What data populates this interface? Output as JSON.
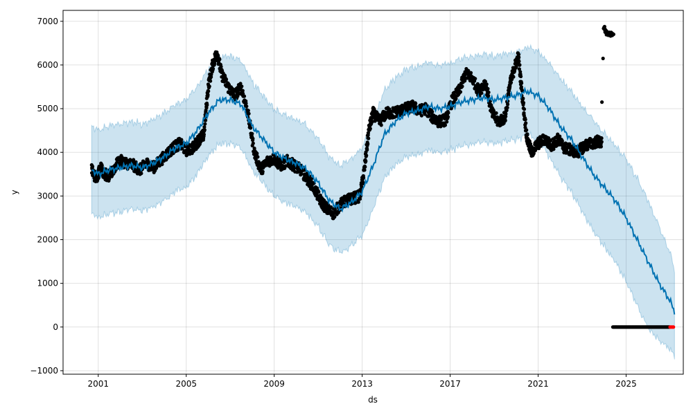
{
  "chart_data": {
    "type": "line",
    "xlabel": "ds",
    "ylabel": "y",
    "xlim": [
      1999.4,
      2027.6
    ],
    "ylim": [
      -1080,
      7250
    ],
    "grid": true,
    "colors": {
      "forecast_line": "#0072B2",
      "uncertainty_band": "#0072B2",
      "observed_points": "#000000",
      "highlight_points": "#ff0000"
    },
    "x_ticks": [
      {
        "value": 2001,
        "label": "2001"
      },
      {
        "value": 2005,
        "label": "2005"
      },
      {
        "value": 2009,
        "label": "2009"
      },
      {
        "value": 2013,
        "label": "2013"
      },
      {
        "value": 2017,
        "label": "2017"
      },
      {
        "value": 2021,
        "label": "2021"
      },
      {
        "value": 2025,
        "label": "2025"
      }
    ],
    "y_ticks": [
      {
        "value": -1000,
        "label": "−1000"
      },
      {
        "value": 0,
        "label": "0"
      },
      {
        "value": 1000,
        "label": "1000"
      },
      {
        "value": 2000,
        "label": "2000"
      },
      {
        "value": 3000,
        "label": "3000"
      },
      {
        "value": 4000,
        "label": "4000"
      },
      {
        "value": 5000,
        "label": "5000"
      },
      {
        "value": 6000,
        "label": "6000"
      },
      {
        "value": 7000,
        "label": "7000"
      }
    ],
    "series": [
      {
        "kind": "forecast",
        "x": [
          2000.7,
          2001.0,
          2001.5,
          2002.0,
          2002.5,
          2003.0,
          2003.5,
          2004.0,
          2004.5,
          2005.0,
          2005.5,
          2006.0,
          2006.5,
          2007.0,
          2007.5,
          2008.0,
          2008.5,
          2009.0,
          2009.5,
          2010.0,
          2010.5,
          2011.0,
          2011.5,
          2012.0,
          2012.5,
          2013.0,
          2013.5,
          2014.0,
          2014.5,
          2015.0,
          2015.5,
          2016.0,
          2016.5,
          2017.0,
          2017.5,
          2018.0,
          2018.5,
          2019.0,
          2019.5,
          2020.0,
          2020.5,
          2021.0,
          2021.5,
          2022.0,
          2022.5,
          2023.0,
          2023.5,
          2024.0,
          2024.5,
          2025.0,
          2025.5,
          2026.0,
          2026.5,
          2027.0,
          2027.2
        ],
        "y": [
          3600,
          3500,
          3600,
          3650,
          3700,
          3650,
          3750,
          3900,
          4100,
          4200,
          4500,
          4900,
          5200,
          5200,
          5100,
          4600,
          4300,
          4000,
          3850,
          3750,
          3600,
          3300,
          2900,
          2700,
          2850,
          3100,
          3700,
          4400,
          4700,
          4900,
          4950,
          5050,
          5000,
          5050,
          5150,
          5200,
          5250,
          5200,
          5250,
          5300,
          5400,
          5300,
          5000,
          4600,
          4300,
          3900,
          3500,
          3200,
          2900,
          2500,
          2000,
          1500,
          1000,
          600,
          350
        ],
        "lower": [
          2600,
          2500,
          2600,
          2650,
          2700,
          2650,
          2750,
          2900,
          3100,
          3200,
          3500,
          3900,
          4200,
          4200,
          4100,
          3600,
          3300,
          3000,
          2850,
          2750,
          2600,
          2300,
          1900,
          1700,
          1850,
          2100,
          2700,
          3400,
          3700,
          3900,
          3950,
          4050,
          4000,
          4050,
          4150,
          4200,
          4250,
          4200,
          4250,
          4300,
          4400,
          4300,
          3900,
          3450,
          3100,
          2650,
          2200,
          1850,
          1500,
          1050,
          500,
          -30,
          -300,
          -500,
          -650
        ],
        "upper": [
          4600,
          4500,
          4600,
          4650,
          4700,
          4650,
          4750,
          4900,
          5100,
          5200,
          5500,
          5900,
          6200,
          6200,
          6100,
          5600,
          5300,
          5000,
          4850,
          4750,
          4600,
          4300,
          3900,
          3700,
          3850,
          4100,
          4700,
          5400,
          5700,
          5900,
          5950,
          6050,
          6000,
          6050,
          6150,
          6200,
          6250,
          6200,
          6250,
          6300,
          6400,
          6300,
          6050,
          5700,
          5400,
          5050,
          4750,
          4450,
          4150,
          3850,
          3400,
          2900,
          2300,
          1700,
          1300
        ]
      },
      {
        "kind": "observed",
        "x": [
          2000.7,
          2000.9,
          2001.1,
          2001.3,
          2001.5,
          2001.8,
          2002.0,
          2002.3,
          2002.6,
          2002.9,
          2003.2,
          2003.5,
          2003.8,
          2004.1,
          2004.4,
          2004.7,
          2005.0,
          2005.3,
          2005.6,
          2005.8,
          2006.0,
          2006.2,
          2006.4,
          2006.6,
          2006.9,
          2007.2,
          2007.5,
          2007.8,
          2008.1,
          2008.4,
          2008.7,
          2009.0,
          2009.3,
          2009.6,
          2009.9,
          2010.2,
          2010.5,
          2010.8,
          2011.1,
          2011.4,
          2011.7,
          2012.0,
          2012.3,
          2012.6,
          2012.9,
          2013.1,
          2013.3,
          2013.5,
          2013.8,
          2014.1,
          2014.4,
          2014.7,
          2015.0,
          2015.3,
          2015.6,
          2015.9,
          2016.2,
          2016.5,
          2016.8,
          2017.1,
          2017.4,
          2017.7,
          2018.0,
          2018.3,
          2018.6,
          2018.9,
          2019.2,
          2019.5,
          2019.7,
          2019.9,
          2020.1,
          2020.3,
          2020.5,
          2020.7,
          2021.0,
          2021.3,
          2021.6,
          2021.9,
          2022.2,
          2022.5,
          2022.8,
          2023.1,
          2023.4,
          2023.7,
          2023.9
        ],
        "y": [
          3600,
          3400,
          3650,
          3500,
          3450,
          3700,
          3800,
          3750,
          3700,
          3600,
          3750,
          3650,
          3800,
          3950,
          4100,
          4200,
          4050,
          4100,
          4300,
          4400,
          5500,
          6000,
          6300,
          5800,
          5500,
          5300,
          5500,
          4900,
          4000,
          3600,
          3800,
          3850,
          3700,
          3800,
          3700,
          3600,
          3400,
          3200,
          2900,
          2700,
          2600,
          2800,
          2900,
          2950,
          3000,
          3600,
          4500,
          4900,
          4700,
          4900,
          4900,
          4950,
          5000,
          5050,
          4950,
          5000,
          4800,
          4700,
          4750,
          5200,
          5400,
          5800,
          5700,
          5400,
          5600,
          4900,
          4700,
          4800,
          5500,
          5900,
          6200,
          5200,
          4300,
          4000,
          4200,
          4300,
          4150,
          4300,
          4100,
          4050,
          4000,
          4150,
          4200,
          4250,
          4200
        ]
      },
      {
        "kind": "observed-outliers",
        "x": [
          2023.9,
          2023.95,
          2024.0,
          2024.05,
          2024.1,
          2024.2,
          2024.3,
          2024.4
        ],
        "y": [
          5150,
          6150,
          6850,
          6780,
          6730,
          6720,
          6700,
          6700
        ]
      },
      {
        "kind": "observed-zeros",
        "x_start": 2024.4,
        "x_end": 2027.0,
        "y": 0
      },
      {
        "kind": "highlight",
        "x": [
          2027.0,
          2027.05,
          2027.1,
          2027.15
        ],
        "y": [
          0,
          0,
          0,
          0
        ]
      }
    ]
  }
}
